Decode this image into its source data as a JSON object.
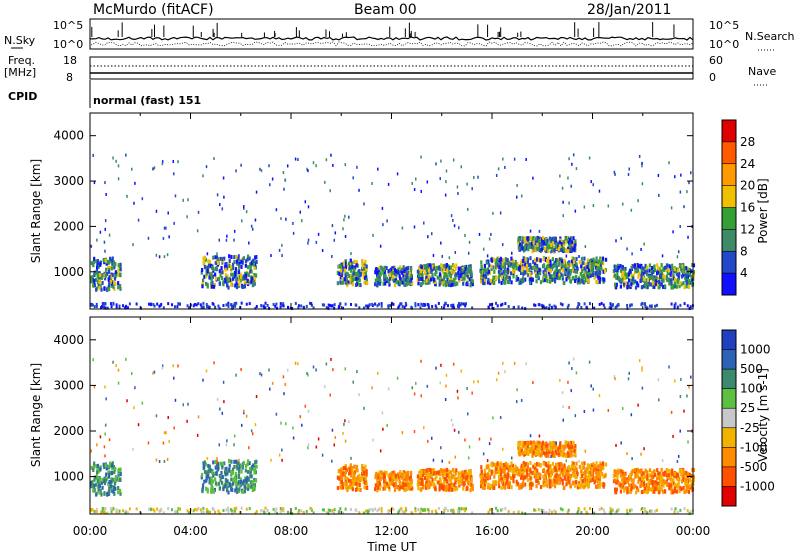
{
  "header": {
    "station": "McMurdo (fitACF)",
    "beam": "Beam 00",
    "date": "28/Jan/2011"
  },
  "labels": {
    "nsky": "N.Sky",
    "nsearch": "N.Search",
    "freq": "Freq.",
    "mhz": "[MHz]",
    "nave": "Nave",
    "cpid": "CPID",
    "cpid_value": "normal (fast) 151",
    "nsky_ticks": [
      "10^5",
      "10^0"
    ],
    "nsearch_ticks": [
      "10^5",
      "10^0"
    ],
    "freq_ticks": [
      "18",
      "8"
    ],
    "nave_ticks": [
      "60",
      "0"
    ]
  },
  "chart_data": [
    {
      "type": "heatmap",
      "name": "power",
      "ylabel": "Slant Range [km]",
      "xlabel": "Time UT",
      "x_ticks": [
        "00:00",
        "04:00",
        "08:00",
        "12:00",
        "16:00",
        "20:00",
        "00:00"
      ],
      "x_range_hours": [
        0,
        24
      ],
      "y_ticks": [
        1000,
        2000,
        3000,
        4000
      ],
      "ylim": [
        180,
        4500
      ],
      "colorbar": {
        "label": "Power [dB]",
        "ticks": [
          "28",
          "24",
          "20",
          "16",
          "12",
          "8",
          "4"
        ],
        "colors_top_to_bottom": [
          "#e00000",
          "#ff5a00",
          "#ff9a00",
          "#f0c000",
          "#34a034",
          "#3c8a66",
          "#2048c8",
          "#1010ff"
        ]
      }
    },
    {
      "type": "heatmap",
      "name": "velocity",
      "ylabel": "Slant Range [km]",
      "xlabel": "Time UT",
      "x_ticks": [
        "00:00",
        "04:00",
        "08:00",
        "12:00",
        "16:00",
        "20:00",
        "00:00"
      ],
      "x_range_hours": [
        0,
        24
      ],
      "y_ticks": [
        1000,
        2000,
        3000,
        4000
      ],
      "ylim": [
        180,
        4500
      ],
      "colorbar": {
        "label": "Velocity [m s-1]",
        "ticks": [
          "1000",
          "500",
          "100",
          "25",
          "-25",
          "-100",
          "-500",
          "-1000"
        ],
        "colors_top_to_bottom": [
          "#2040c0",
          "#2c63b4",
          "#3c8a6e",
          "#5cc040",
          "#c8c8c8",
          "#f0b400",
          "#ff8c00",
          "#ff5000",
          "#e00000"
        ]
      }
    }
  ],
  "scatter_regions": [
    {
      "t0": 0.0,
      "t1": 1.2,
      "r0": 600,
      "r1": 1300
    },
    {
      "t0": 4.4,
      "t1": 6.6,
      "r0": 650,
      "r1": 1350
    },
    {
      "t0": 9.8,
      "t1": 11.0,
      "r0": 700,
      "r1": 1250
    },
    {
      "t0": 11.3,
      "t1": 12.8,
      "r0": 700,
      "r1": 1100
    },
    {
      "t0": 13.0,
      "t1": 15.2,
      "r0": 700,
      "r1": 1150
    },
    {
      "t0": 15.5,
      "t1": 20.5,
      "r0": 750,
      "r1": 1300
    },
    {
      "t0": 17.0,
      "t1": 19.3,
      "r0": 1450,
      "r1": 1750
    },
    {
      "t0": 20.8,
      "t1": 24.0,
      "r0": 650,
      "r1": 1150
    }
  ]
}
